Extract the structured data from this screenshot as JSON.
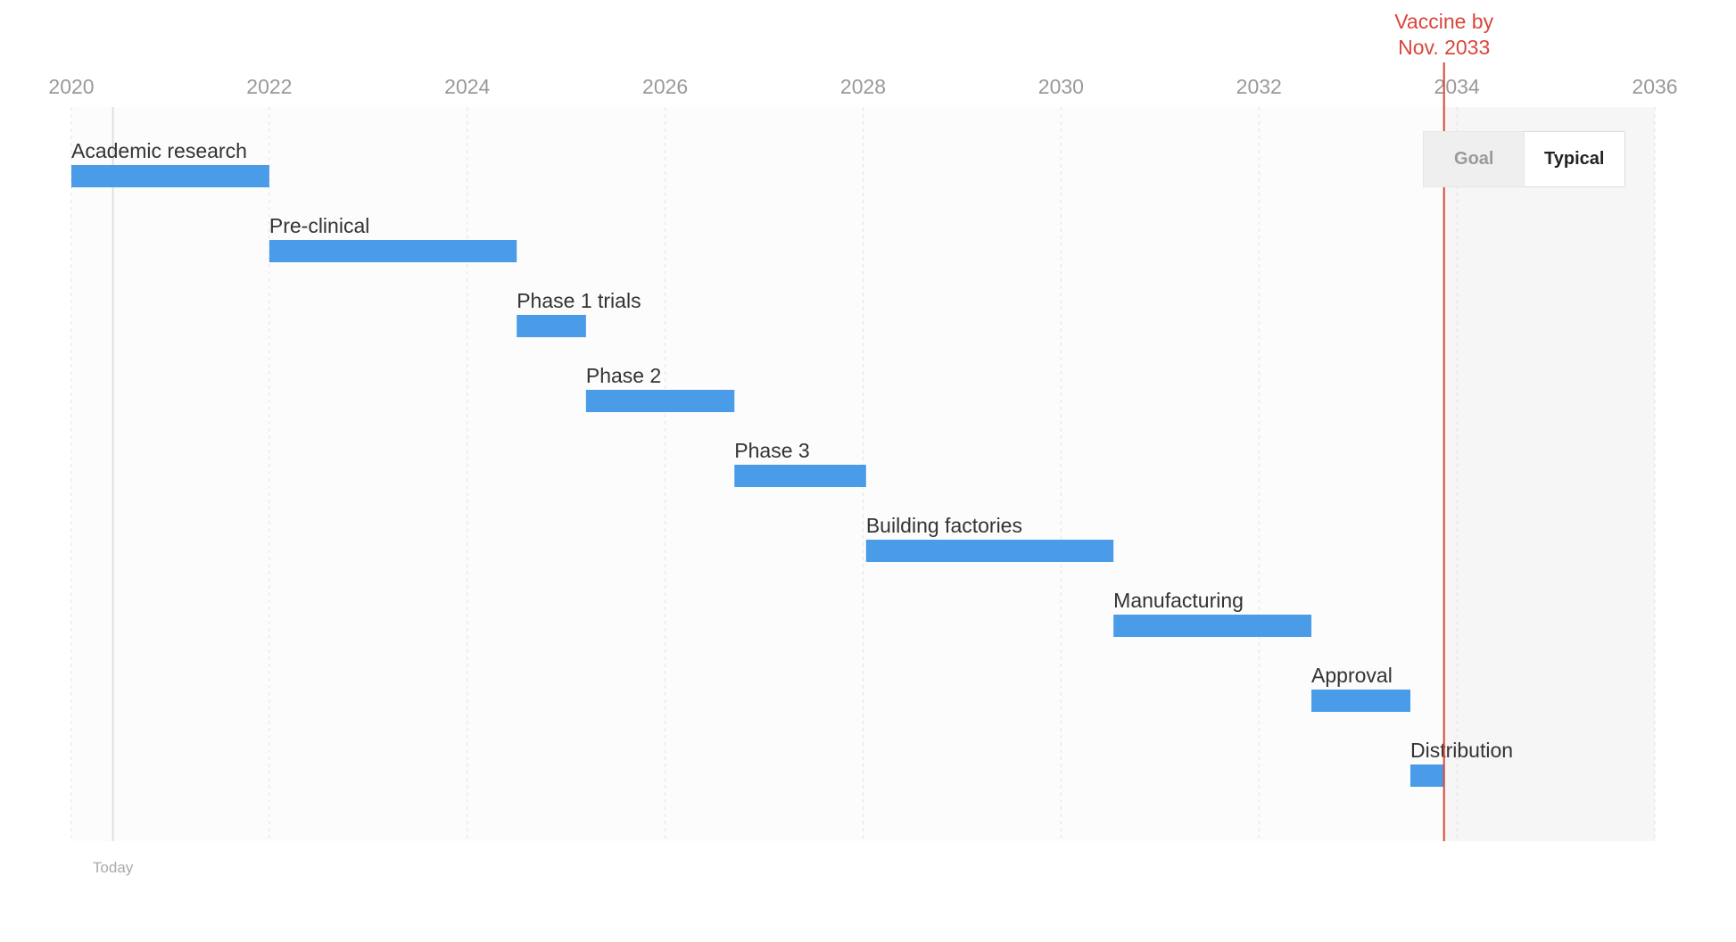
{
  "chart_data": {
    "type": "gantt",
    "x_ticks": [
      "2020",
      "2022",
      "2024",
      "2026",
      "2028",
      "2030",
      "2032",
      "2034",
      "2036"
    ],
    "xlim": [
      2020,
      2036
    ],
    "tasks": [
      {
        "label": "Academic research",
        "start": 2020.0,
        "end": 2022.0
      },
      {
        "label": "Pre-clinical",
        "start": 2022.0,
        "end": 2024.5
      },
      {
        "label": "Phase 1 trials",
        "start": 2024.5,
        "end": 2025.2
      },
      {
        "label": "Phase 2",
        "start": 2025.2,
        "end": 2026.7
      },
      {
        "label": "Phase 3",
        "start": 2026.7,
        "end": 2028.03
      },
      {
        "label": "Building factories",
        "start": 2028.03,
        "end": 2030.53
      },
      {
        "label": "Manufacturing",
        "start": 2030.53,
        "end": 2032.53
      },
      {
        "label": "Approval",
        "start": 2032.53,
        "end": 2033.53
      },
      {
        "label": "Distribution",
        "start": 2033.53,
        "end": 2033.87
      }
    ],
    "today": {
      "label": "Today",
      "x": 2020.42
    },
    "target": {
      "line1": "Vaccine by",
      "line2": "Nov. 2033",
      "x": 2033.87
    },
    "grid": true,
    "colors": {
      "bar": "#4a9be8",
      "target": "#d9463b",
      "grid": "#e3e3e3",
      "plot_bg": "#fcfcfc",
      "after_target_bg": "#f6f6f6"
    }
  },
  "toggle": {
    "goal_label": "Goal",
    "typical_label": "Typical",
    "selected": "Typical"
  }
}
